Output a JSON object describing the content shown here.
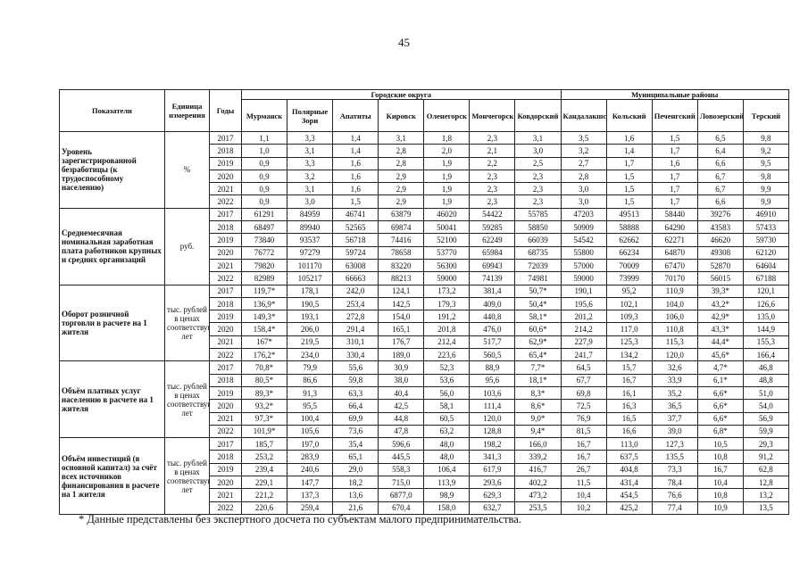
{
  "page_number": "45",
  "table": {
    "header": {
      "indicator": "Показатели",
      "unit": "Единица измерения",
      "year": "Годы",
      "group_city": "Городские округа",
      "group_district": "Муниципальные районы"
    },
    "cities": [
      "Мурманск",
      "Полярные Зори",
      "Апатиты",
      "Кировск",
      "Оленегорск",
      "Мончегорск",
      "Ковдорский"
    ],
    "districts": [
      "Кандалакшский",
      "Кольский",
      "Печенгский",
      "Ловозерский",
      "Терский"
    ],
    "sections": [
      {
        "indicator": "Уровень зарегистрированной безработицы (к трудоспособному населению)",
        "unit": "%",
        "rows": [
          {
            "year": "2017",
            "values": [
              "1,1",
              "3,3",
              "1,4",
              "3,1",
              "1,8",
              "2,3",
              "3,1",
              "3,5",
              "1,6",
              "1,5",
              "6,5",
              "9,8"
            ]
          },
          {
            "year": "2018",
            "values": [
              "1,0",
              "3,1",
              "1,4",
              "2,8",
              "2,0",
              "2,1",
              "3,0",
              "3,2",
              "1,4",
              "1,7",
              "6,4",
              "9,2"
            ]
          },
          {
            "year": "2019",
            "values": [
              "0,9",
              "3,3",
              "1,6",
              "2,8",
              "1,9",
              "2,2",
              "2,5",
              "2,7",
              "1,7",
              "1,6",
              "6,6",
              "9,5"
            ]
          },
          {
            "year": "2020",
            "values": [
              "0,9",
              "3,2",
              "1,6",
              "2,9",
              "1,9",
              "2,3",
              "2,3",
              "2,8",
              "1,5",
              "1,7",
              "6,7",
              "9,8"
            ]
          },
          {
            "year": "2021",
            "values": [
              "0,9",
              "3,1",
              "1,6",
              "2,9",
              "1,9",
              "2,3",
              "2,3",
              "3,0",
              "1,5",
              "1,7",
              "6,7",
              "9,9"
            ]
          },
          {
            "year": "2022",
            "values": [
              "0,9",
              "3,0",
              "1,5",
              "2,9",
              "1,9",
              "2,3",
              "2,3",
              "3,0",
              "1,5",
              "1,7",
              "6,6",
              "9,9"
            ]
          }
        ]
      },
      {
        "indicator": "Среднемесячная номинальная заработная плата работников крупных и средних организаций",
        "unit": "руб.",
        "rows": [
          {
            "year": "2017",
            "values": [
              "61291",
              "84959",
              "46741",
              "63879",
              "46020",
              "54422",
              "55785",
              "47203",
              "49513",
              "58440",
              "39276",
              "46910"
            ]
          },
          {
            "year": "2018",
            "values": [
              "68497",
              "89940",
              "52565",
              "69874",
              "50041",
              "59285",
              "58850",
              "50909",
              "58888",
              "64290",
              "43583",
              "57433"
            ]
          },
          {
            "year": "2019",
            "values": [
              "73840",
              "93537",
              "56718",
              "74416",
              "52100",
              "62249",
              "66039",
              "54542",
              "62662",
              "62271",
              "46620",
              "59730"
            ]
          },
          {
            "year": "2020",
            "values": [
              "76772",
              "97279",
              "59724",
              "78658",
              "53770",
              "65984",
              "68735",
              "55800",
              "66234",
              "64870",
              "49308",
              "62120"
            ]
          },
          {
            "year": "2021",
            "values": [
              "79820",
              "101170",
              "63008",
              "83220",
              "56300",
              "69943",
              "72039",
              "57000",
              "70009",
              "67470",
              "52870",
              "64604"
            ]
          },
          {
            "year": "2022",
            "values": [
              "82989",
              "105217",
              "66663",
              "88213",
              "59000",
              "74139",
              "74981",
              "59000",
              "73999",
              "70170",
              "56015",
              "67188"
            ]
          }
        ]
      },
      {
        "indicator": "Оборот розничной торговли в расчете на 1 жителя",
        "unit": "тыс. рублей в ценах соответствующих лет",
        "rows": [
          {
            "year": "2017",
            "values": [
              "119,7*",
              "178,1",
              "242,0",
              "124,1",
              "173,2",
              "381,4",
              "50,7*",
              "190,1",
              "95,2",
              "110,9",
              "39,3*",
              "120,1"
            ]
          },
          {
            "year": "2018",
            "values": [
              "136,9*",
              "190,5",
              "253,4",
              "142,5",
              "179,3",
              "409,0",
              "50,4*",
              "195,6",
              "102,1",
              "104,0",
              "43,2*",
              "126,6"
            ]
          },
          {
            "year": "2019",
            "values": [
              "149,3*",
              "193,1",
              "272,8",
              "154,0",
              "191,2",
              "440,8",
              "58,1*",
              "201,2",
              "109,3",
              "106,0",
              "42,9*",
              "135,0"
            ]
          },
          {
            "year": "2020",
            "values": [
              "158,4*",
              "206,0",
              "291,4",
              "165,1",
              "201,8",
              "476,0",
              "60,6*",
              "214,2",
              "117,0",
              "110,8",
              "43,3*",
              "144,9"
            ]
          },
          {
            "year": "2021",
            "values": [
              "167*",
              "219,5",
              "310,1",
              "176,7",
              "212,4",
              "517,7",
              "62,9*",
              "227,9",
              "125,3",
              "115,3",
              "44,4*",
              "155,3"
            ]
          },
          {
            "year": "2022",
            "values": [
              "176,2*",
              "234,0",
              "330,4",
              "189,0",
              "223,6",
              "560,5",
              "65,4*",
              "241,7",
              "134,2",
              "120,0",
              "45,6*",
              "166,4"
            ]
          }
        ]
      },
      {
        "indicator": "Объём платных услуг населению в расчете на 1 жителя",
        "unit": "тыс. рублей в ценах соответствующих лет",
        "rows": [
          {
            "year": "2017",
            "values": [
              "70,8*",
              "79,9",
              "55,6",
              "30,9",
              "52,3",
              "88,9",
              "7,7*",
              "64,5",
              "15,7",
              "32,6",
              "4,7*",
              "46,8"
            ]
          },
          {
            "year": "2018",
            "values": [
              "80,5*",
              "86,6",
              "59,8",
              "38,0",
              "53,6",
              "95,6",
              "18,1*",
              "67,7",
              "16,7",
              "33,9",
              "6,1*",
              "48,8"
            ]
          },
          {
            "year": "2019",
            "values": [
              "89,3*",
              "91,3",
              "63,3",
              "40,4",
              "56,0",
              "103,6",
              "8,3*",
              "69,8",
              "16,1",
              "35,2",
              "6,6*",
              "51,0"
            ]
          },
          {
            "year": "2020",
            "values": [
              "93,2*",
              "95,5",
              "66,4",
              "42,5",
              "58,1",
              "111,4",
              "8,6*",
              "72,5",
              "16,3",
              "36,5",
              "6,6*",
              "54,0"
            ]
          },
          {
            "year": "2021",
            "values": [
              "97,3*",
              "100,4",
              "69,9",
              "44,8",
              "60,5",
              "120,0",
              "9,0*",
              "76,9",
              "16,5",
              "37,7",
              "6,6*",
              "56,9"
            ]
          },
          {
            "year": "2022",
            "values": [
              "101,9*",
              "105,6",
              "73,6",
              "47,8",
              "63,2",
              "128,8",
              "9,4*",
              "81,5",
              "16,6",
              "39,0",
              "6,8*",
              "59,9"
            ]
          }
        ]
      },
      {
        "indicator": "Объём инвестиций (в основной капитал) за счёт всех источников финансирования в расчете на 1 жителя",
        "unit": "тыс. рублей в ценах соответствующих лет",
        "rows": [
          {
            "year": "2017",
            "values": [
              "185,7",
              "197,0",
              "35,4",
              "596,6",
              "48,0",
              "198,2",
              "166,0",
              "16,7",
              "113,0",
              "127,3",
              "10,5",
              "29,3"
            ]
          },
          {
            "year": "2018",
            "values": [
              "253,2",
              "283,9",
              "65,1",
              "445,5",
              "48,0",
              "341,3",
              "339,2",
              "16,7",
              "637,5",
              "135,5",
              "10,8",
              "91,2"
            ]
          },
          {
            "year": "2019",
            "values": [
              "239,4",
              "240,6",
              "29,0",
              "558,3",
              "106,4",
              "617,9",
              "416,7",
              "26,7",
              "404,8",
              "73,3",
              "16,7",
              "62,8"
            ]
          },
          {
            "year": "2020",
            "values": [
              "229,1",
              "147,7",
              "18,2",
              "715,0",
              "113,9",
              "293,6",
              "402,2",
              "11,5",
              "431,4",
              "78,4",
              "10,4",
              "12,8"
            ]
          },
          {
            "year": "2021",
            "values": [
              "221,2",
              "137,3",
              "13,6",
              "6877,0",
              "98,9",
              "629,3",
              "473,2",
              "10,4",
              "454,5",
              "76,6",
              "10,8",
              "13,2"
            ]
          },
          {
            "year": "2022",
            "values": [
              "220,6",
              "259,4",
              "21,6",
              "670,4",
              "158,0",
              "632,7",
              "253,5",
              "10,2",
              "425,2",
              "77,4",
              "10,9",
              "13,5"
            ]
          }
        ]
      }
    ]
  },
  "footnote": "* Данные представлены без экспертного досчета по субъектам малого предпринимательства."
}
